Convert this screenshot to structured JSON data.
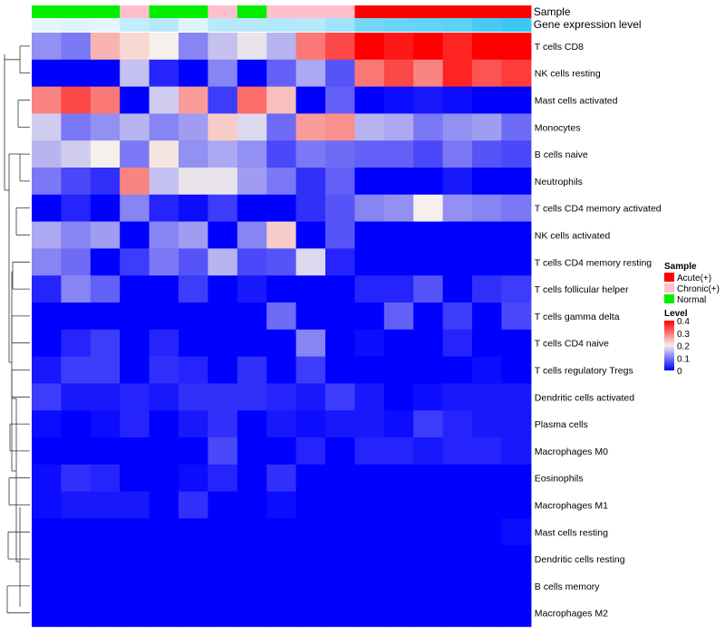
{
  "chart_data": {
    "type": "heatmap",
    "annotation_labels": [
      "Sample",
      "Gene expression level"
    ],
    "sample_groups": [
      "Normal",
      "Normal",
      "Normal",
      "Chronic(+)",
      "Normal",
      "Normal",
      "Chronic(+)",
      "Normal",
      "Chronic(+)",
      "Chronic(+)",
      "Chronic(+)",
      "Acute(+)",
      "Acute(+)",
      "Acute(+)",
      "Acute(+)",
      "Acute(+)",
      "Acute(+)"
    ],
    "sample_levels": [
      0.02,
      0.03,
      0.02,
      0.08,
      0.1,
      0.03,
      0.1,
      0.1,
      0.11,
      0.1,
      0.14,
      0.22,
      0.24,
      0.25,
      0.26,
      0.3,
      0.32
    ],
    "rows": [
      "T cells CD8",
      "NK cells resting",
      "Mast cells activated",
      "Monocytes",
      "B cells naive",
      "Neutrophils",
      "T cells CD4 memory activated",
      "NK cells activated",
      "T cells CD4 memory resting",
      "T cells follicular helper",
      "T cells gamma delta",
      "T cells CD4 naive",
      "T cells regulatory  Tregs",
      "Dendritic cells activated",
      "Plasma cells",
      "Macrophages M0",
      "Eosinophils",
      "Macrophages M1",
      "Mast cells resting",
      "Dendritic cells resting",
      "B cells memory",
      "Macrophages M2"
    ],
    "values": [
      [
        0.12,
        0.1,
        0.25,
        0.22,
        0.2,
        0.11,
        0.16,
        0.19,
        0.15,
        0.3,
        0.34,
        0.4,
        0.38,
        0.4,
        0.37,
        0.4,
        0.4
      ],
      [
        0.0,
        0.0,
        0.0,
        0.16,
        0.03,
        0.0,
        0.11,
        0.0,
        0.08,
        0.14,
        0.07,
        0.3,
        0.34,
        0.29,
        0.37,
        0.33,
        0.35
      ],
      [
        0.29,
        0.34,
        0.3,
        0.0,
        0.17,
        0.27,
        0.05,
        0.31,
        0.24,
        0.0,
        0.08,
        0.0,
        0.01,
        0.02,
        0.01,
        0.0,
        0.0
      ],
      [
        0.17,
        0.1,
        0.12,
        0.15,
        0.11,
        0.13,
        0.23,
        0.18,
        0.09,
        0.27,
        0.28,
        0.15,
        0.14,
        0.1,
        0.12,
        0.13,
        0.09
      ],
      [
        0.15,
        0.17,
        0.2,
        0.1,
        0.21,
        0.12,
        0.14,
        0.12,
        0.06,
        0.1,
        0.09,
        0.08,
        0.08,
        0.06,
        0.1,
        0.07,
        0.06
      ],
      [
        0.1,
        0.06,
        0.04,
        0.29,
        0.16,
        0.19,
        0.19,
        0.13,
        0.1,
        0.04,
        0.08,
        0.0,
        0.0,
        0.0,
        0.02,
        0.0,
        0.0
      ],
      [
        0.0,
        0.03,
        0.0,
        0.11,
        0.03,
        0.01,
        0.05,
        0.0,
        0.0,
        0.04,
        0.07,
        0.11,
        0.12,
        0.2,
        0.12,
        0.11,
        0.1
      ],
      [
        0.14,
        0.11,
        0.13,
        0.0,
        0.11,
        0.13,
        0.0,
        0.11,
        0.23,
        0.0,
        0.07,
        0.0,
        0.0,
        0.0,
        0.0,
        0.0,
        0.0
      ],
      [
        0.11,
        0.09,
        0.0,
        0.05,
        0.1,
        0.07,
        0.15,
        0.06,
        0.07,
        0.18,
        0.03,
        0.0,
        0.0,
        0.0,
        0.0,
        0.0,
        0.0
      ],
      [
        0.03,
        0.11,
        0.08,
        0.0,
        0.0,
        0.05,
        0.0,
        0.02,
        0.0,
        0.0,
        0.0,
        0.03,
        0.03,
        0.07,
        0.0,
        0.04,
        0.05
      ],
      [
        0.0,
        0.0,
        0.0,
        0.0,
        0.0,
        0.0,
        0.0,
        0.0,
        0.09,
        0.0,
        0.0,
        0.0,
        0.08,
        0.0,
        0.05,
        0.0,
        0.06
      ],
      [
        0.0,
        0.03,
        0.05,
        0.0,
        0.03,
        0.0,
        0.0,
        0.0,
        0.0,
        0.11,
        0.0,
        0.01,
        0.0,
        0.0,
        0.03,
        0.0,
        0.0
      ],
      [
        0.02,
        0.05,
        0.05,
        0.0,
        0.04,
        0.03,
        0.0,
        0.04,
        0.0,
        0.05,
        0.0,
        0.0,
        0.0,
        0.0,
        0.0,
        0.01,
        0.0
      ],
      [
        0.05,
        0.02,
        0.02,
        0.03,
        0.02,
        0.04,
        0.04,
        0.04,
        0.03,
        0.02,
        0.05,
        0.02,
        0.0,
        0.01,
        0.02,
        0.02,
        0.02
      ],
      [
        0.01,
        0.0,
        0.01,
        0.03,
        0.0,
        0.02,
        0.04,
        0.0,
        0.02,
        0.01,
        0.02,
        0.02,
        0.01,
        0.05,
        0.03,
        0.02,
        0.02
      ],
      [
        0.0,
        0.0,
        0.0,
        0.0,
        0.0,
        0.0,
        0.06,
        0.0,
        0.0,
        0.03,
        0.0,
        0.03,
        0.03,
        0.02,
        0.03,
        0.03,
        0.02
      ],
      [
        0.01,
        0.04,
        0.03,
        0.0,
        0.0,
        0.01,
        0.03,
        0.0,
        0.04,
        0.0,
        0.0,
        0.0,
        0.0,
        0.0,
        0.0,
        0.0,
        0.0
      ],
      [
        0.01,
        0.02,
        0.02,
        0.02,
        0.0,
        0.04,
        0.0,
        0.0,
        0.01,
        0.0,
        0.0,
        0.0,
        0.0,
        0.0,
        0.0,
        0.0,
        0.0
      ],
      [
        0.0,
        0.0,
        0.0,
        0.0,
        0.0,
        0.0,
        0.0,
        0.0,
        0.0,
        0.0,
        0.0,
        0.0,
        0.0,
        0.0,
        0.0,
        0.0,
        0.01
      ],
      [
        0.0,
        0.0,
        0.0,
        0.0,
        0.0,
        0.0,
        0.0,
        0.0,
        0.0,
        0.0,
        0.0,
        0.0,
        0.0,
        0.0,
        0.0,
        0.0,
        0.0
      ],
      [
        0.0,
        0.0,
        0.0,
        0.0,
        0.0,
        0.0,
        0.0,
        0.0,
        0.0,
        0.0,
        0.0,
        0.0,
        0.0,
        0.0,
        0.0,
        0.0,
        0.0
      ],
      [
        0.0,
        0.0,
        0.0,
        0.0,
        0.0,
        0.0,
        0.0,
        0.0,
        0.0,
        0.0,
        0.0,
        0.0,
        0.0,
        0.0,
        0.0,
        0.0,
        0.0
      ]
    ],
    "color_scale": {
      "min": 0,
      "mid": 0.2,
      "max": 0.4,
      "low_color": "#0000ff",
      "mid_color": "#f5f0eb",
      "high_color": "#ff0000"
    },
    "level_color_scale": {
      "min": 0,
      "max": 0.32,
      "low_color": "#f0f8fe",
      "high_color": "#3cc8f5"
    },
    "legend": {
      "sample_title": "Sample",
      "sample_entries": [
        {
          "label": "Acute(+)",
          "color": "#ff0000"
        },
        {
          "label": "Chronic(+)",
          "color": "#ffc0cb"
        },
        {
          "label": "Normal",
          "color": "#00ee00"
        }
      ],
      "level_title": "Level",
      "level_ticks": [
        "0.4",
        "0.3",
        "0.2",
        "0.1",
        "0"
      ],
      "level_tick_values": [
        0.4,
        0.3,
        0.2,
        0.1,
        0
      ]
    }
  }
}
